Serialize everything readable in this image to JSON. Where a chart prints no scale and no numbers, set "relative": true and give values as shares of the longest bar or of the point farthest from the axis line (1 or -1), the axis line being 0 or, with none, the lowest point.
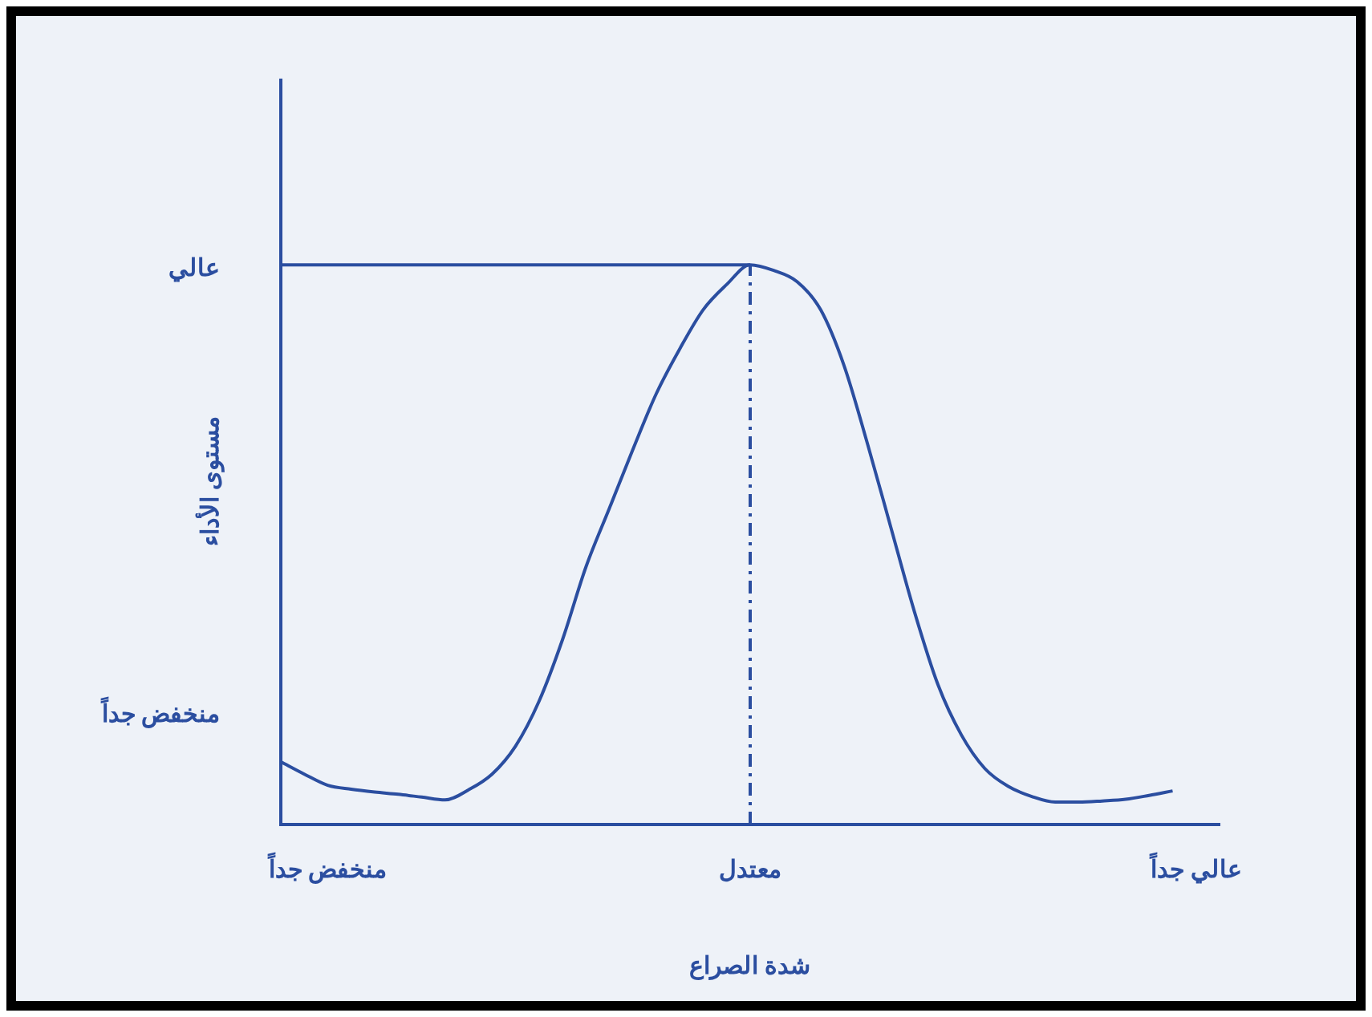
{
  "chart_data": {
    "type": "line",
    "relative": true,
    "xlabel": "شدة الصراع",
    "ylabel": "مستوى الأداء",
    "categories": [
      null,
      null,
      "منخفض جداً",
      null,
      null,
      null,
      null,
      null,
      null,
      null,
      null,
      null,
      null,
      null,
      null,
      null,
      null,
      null,
      null,
      null,
      "معتدل",
      null,
      null,
      null,
      null,
      null,
      null,
      null,
      null,
      null,
      null,
      null,
      null,
      null,
      null,
      null,
      null,
      null,
      null,
      "عالي جداً",
      null
    ],
    "annotations": [
      "عالي",
      "منخفض جداً"
    ],
    "legend": false,
    "grid": false,
    "marker": "none",
    "ref_lines": [
      {
        "axis": "x",
        "value": "معتدل",
        "line_style": "dashed",
        "color": "#2b4ea0"
      }
    ],
    "series": [
      {
        "color": "#2b4ea0",
        "line_style": "solid",
        "values": [
          0.112,
          0.09,
          0.07,
          0.063,
          0.058,
          0.054,
          0.049,
          0.044,
          0.062,
          0.09,
          0.14,
          0.22,
          0.33,
          0.46,
          0.565,
          0.67,
          0.77,
          0.85,
          0.92,
          0.965,
          1,
          0.99,
          0.97,
          0.92,
          0.82,
          0.68,
          0.53,
          0.38,
          0.25,
          0.16,
          0.1,
          0.068,
          0.05,
          0.04,
          0.04,
          0.042,
          0.045,
          0.052,
          0.06,
          null,
          null
        ]
      },
      {
        "color": "#2b4ea0",
        "line_style": "solid",
        "values": [
          1,
          1,
          1,
          1,
          1,
          1,
          1,
          1,
          1,
          1,
          1,
          1,
          1,
          1,
          1,
          1,
          1,
          1,
          1,
          1,
          1,
          null,
          null,
          null,
          null,
          null,
          null,
          null,
          null,
          null,
          null,
          null,
          null,
          null,
          null,
          null,
          null,
          null,
          null,
          null,
          null
        ]
      }
    ]
  }
}
